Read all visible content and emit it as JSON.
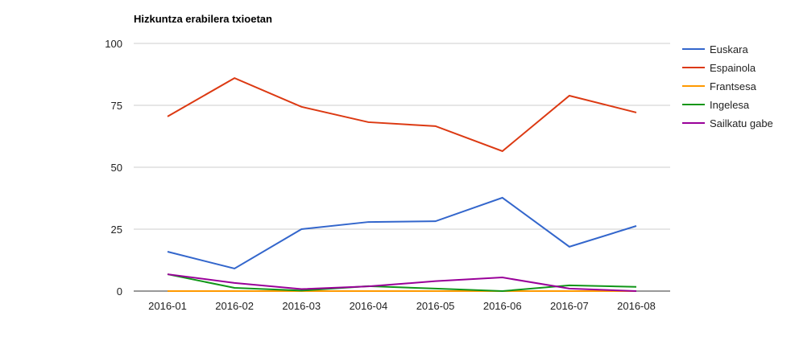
{
  "chart_data": {
    "type": "line",
    "title": "Hizkuntza erabilera txioetan",
    "xlabel": "",
    "ylabel": "",
    "ylim": [
      0,
      100
    ],
    "yticks": [
      0,
      25,
      50,
      75,
      100
    ],
    "grid": true,
    "legend_position": "right",
    "categories": [
      "2016-01",
      "2016-02",
      "2016-03",
      "2016-04",
      "2016-05",
      "2016-06",
      "2016-07",
      "2016-08"
    ],
    "series": [
      {
        "name": "Euskara",
        "color": "#3366cc",
        "values": [
          15.9,
          9.1,
          25.0,
          27.9,
          28.2,
          37.7,
          17.9,
          26.3
        ]
      },
      {
        "name": "Espainola",
        "color": "#dc3912",
        "values": [
          70.5,
          86.0,
          74.4,
          68.2,
          66.6,
          56.5,
          78.9,
          72.1
        ]
      },
      {
        "name": "Frantsesa",
        "color": "#ff9900",
        "values": [
          0,
          0,
          0,
          0,
          0,
          0,
          0,
          0
        ]
      },
      {
        "name": "Ingelesa",
        "color": "#109618",
        "values": [
          6.8,
          1.3,
          0.2,
          2.0,
          1.0,
          0.0,
          2.3,
          1.7
        ]
      },
      {
        "name": "Sailkatu gabe",
        "color": "#990099",
        "values": [
          6.8,
          3.3,
          0.8,
          1.9,
          4.0,
          5.5,
          1.0,
          0.0
        ]
      }
    ]
  }
}
